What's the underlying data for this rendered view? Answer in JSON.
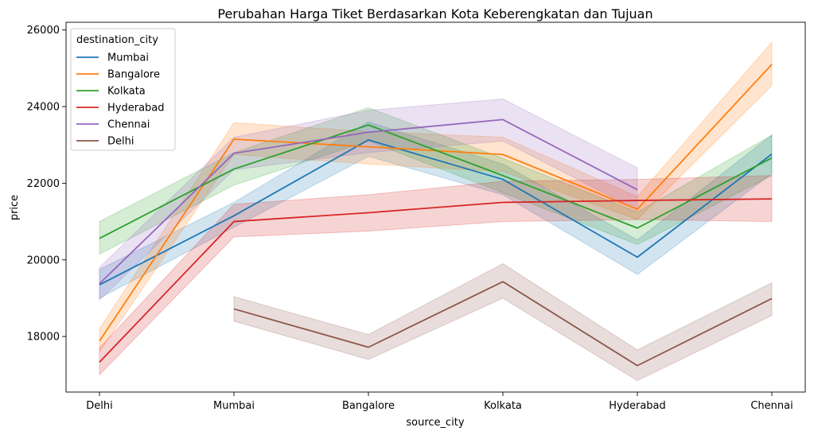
{
  "chart_data": {
    "type": "line",
    "title": "Perubahan Harga Tiket Berdasarkan Kota Keberengkatan dan Tujuan",
    "xlabel": "source_city",
    "ylabel": "price",
    "categories": [
      "Delhi",
      "Mumbai",
      "Bangalore",
      "Kolkata",
      "Hyderabad",
      "Chennai"
    ],
    "ylim": [
      16550,
      26200
    ],
    "yticks": [
      18000,
      20000,
      22000,
      24000,
      26000
    ],
    "ytick_labels": [
      "18000",
      "20000",
      "22000",
      "24000",
      "26000"
    ],
    "grid": false,
    "legend": {
      "title": "destination_city",
      "placement": "top-left"
    },
    "series": [
      {
        "name": "Mumbai",
        "color": "#1f77b4",
        "values": [
          19350,
          21150,
          23130,
          22100,
          20070,
          22760
        ],
        "ci_low": [
          19000,
          20850,
          22700,
          21700,
          19620,
          22250
        ],
        "ci_high": [
          19750,
          21500,
          23600,
          22500,
          20520,
          23260
        ]
      },
      {
        "name": "Bangalore",
        "color": "#ff7f0e",
        "values": [
          17880,
          23150,
          22950,
          22750,
          21320,
          25100
        ],
        "ci_low": [
          17600,
          22750,
          22500,
          22300,
          21050,
          24550
        ],
        "ci_high": [
          18200,
          23580,
          23350,
          23200,
          21650,
          25680
        ]
      },
      {
        "name": "Kolkata",
        "color": "#2ca02c",
        "values": [
          20560,
          22370,
          23520,
          22200,
          20830,
          22660
        ],
        "ci_low": [
          20150,
          21950,
          23100,
          21750,
          20400,
          22200
        ],
        "ci_high": [
          21000,
          22800,
          23970,
          22650,
          21250,
          23250
        ]
      },
      {
        "name": "Hyderabad",
        "color": "#d62728",
        "values": [
          17330,
          21000,
          21230,
          21500,
          21550,
          21590
        ],
        "ci_low": [
          17000,
          20600,
          20750,
          21000,
          21050,
          21000
        ],
        "ci_high": [
          17700,
          21450,
          21700,
          22050,
          22100,
          22200
        ]
      },
      {
        "name": "Chennai",
        "color": "#9467bd",
        "values": [
          19380,
          22780,
          23330,
          23660,
          21830,
          null
        ],
        "ci_low": [
          18950,
          22350,
          22800,
          23100,
          21300,
          null
        ],
        "ci_high": [
          19800,
          23200,
          23900,
          24200,
          22400,
          null
        ]
      },
      {
        "name": "Delhi",
        "color": "#8c564b",
        "values": [
          null,
          18720,
          17720,
          19430,
          17240,
          18990
        ],
        "ci_low": [
          null,
          18400,
          17400,
          19000,
          16850,
          18550
        ],
        "ci_high": [
          null,
          19040,
          18050,
          19900,
          17650,
          19400
        ]
      }
    ]
  }
}
